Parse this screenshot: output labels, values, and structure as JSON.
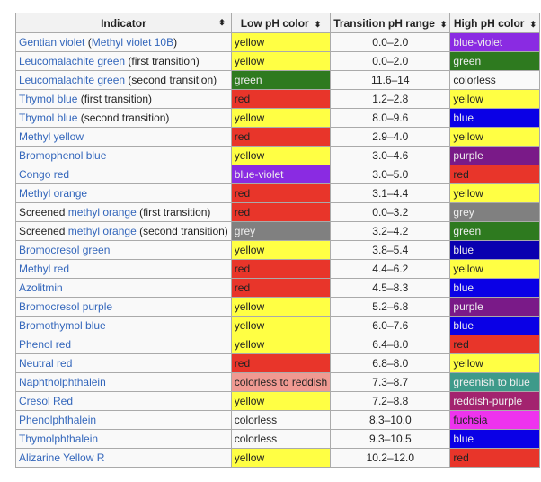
{
  "headers": [
    "Indicator",
    "Low pH color",
    "Transition pH range",
    "High pH color"
  ],
  "sort_icon": "sort-arrows-icon",
  "colors": {
    "yellow": "#ffff44",
    "red": "#e8352a",
    "green": "#2e7a1f",
    "grey": "#808080",
    "blue-violet": "#8a2be2",
    "blue": "#0a00e6",
    "blue-dark": "#0a00b0",
    "purple": "#7a1a88",
    "greenish to blue": "#3e9a8a",
    "reddish-purple": "#a3236f",
    "fuchsia": "#ee33ee",
    "colorless to reddish": "#f09a92",
    "colorless": ""
  },
  "rows": [
    {
      "indicator": [
        [
          "Gentian violet",
          1
        ],
        [
          " (",
          0
        ],
        [
          "Methyl violet 10B",
          1
        ],
        [
          ")",
          0
        ]
      ],
      "low": "yellow",
      "range": "0.0–2.0",
      "high": "blue-violet"
    },
    {
      "indicator": [
        [
          "Leucomalachite green",
          1
        ],
        [
          " (first transition)",
          0
        ]
      ],
      "low": "yellow",
      "range": "0.0–2.0",
      "high": "green"
    },
    {
      "indicator": [
        [
          "Leucomalachite green",
          1
        ],
        [
          " (second transition)",
          0
        ]
      ],
      "low": "green",
      "range": "11.6–14",
      "high": "colorless"
    },
    {
      "indicator": [
        [
          "Thymol blue",
          1
        ],
        [
          " (first transition)",
          0
        ]
      ],
      "low": "red",
      "range": "1.2–2.8",
      "high": "yellow"
    },
    {
      "indicator": [
        [
          "Thymol blue",
          1
        ],
        [
          " (second transition)",
          0
        ]
      ],
      "low": "yellow",
      "range": "8.0–9.6",
      "high": "blue"
    },
    {
      "indicator": [
        [
          "Methyl yellow",
          1
        ]
      ],
      "low": "red",
      "range": "2.9–4.0",
      "high": "yellow"
    },
    {
      "indicator": [
        [
          "Bromophenol blue",
          1
        ]
      ],
      "low": "yellow",
      "range": "3.0–4.6",
      "high": "purple"
    },
    {
      "indicator": [
        [
          "Congo red",
          1
        ]
      ],
      "low": "blue-violet",
      "range": "3.0–5.0",
      "high": "red"
    },
    {
      "indicator": [
        [
          "Methyl orange",
          1
        ]
      ],
      "low": "red",
      "range": "3.1–4.4",
      "high": "yellow"
    },
    {
      "indicator": [
        [
          "Screened ",
          0
        ],
        [
          "methyl orange",
          1
        ],
        [
          " (first transition)",
          0
        ]
      ],
      "low": "red",
      "range": "0.0–3.2",
      "high": "grey"
    },
    {
      "indicator": [
        [
          "Screened ",
          0
        ],
        [
          "methyl orange",
          1
        ],
        [
          " (second transition)",
          0
        ]
      ],
      "low": "grey",
      "range": "3.2–4.2",
      "high": "green"
    },
    {
      "indicator": [
        [
          "Bromocresol green",
          1
        ]
      ],
      "low": "yellow",
      "range": "3.8–5.4",
      "high": "blue",
      "highShade": "blue-dark"
    },
    {
      "indicator": [
        [
          "Methyl red",
          1
        ]
      ],
      "low": "red",
      "range": "4.4–6.2",
      "high": "yellow"
    },
    {
      "indicator": [
        [
          "Azolitmin",
          1
        ]
      ],
      "low": "red",
      "range": "4.5–8.3",
      "high": "blue"
    },
    {
      "indicator": [
        [
          "Bromocresol purple",
          1
        ]
      ],
      "low": "yellow",
      "range": "5.2–6.8",
      "high": "purple"
    },
    {
      "indicator": [
        [
          "Bromothymol blue",
          1
        ]
      ],
      "low": "yellow",
      "range": "6.0–7.6",
      "high": "blue"
    },
    {
      "indicator": [
        [
          "Phenol red",
          1
        ]
      ],
      "low": "yellow",
      "range": "6.4–8.0",
      "high": "red"
    },
    {
      "indicator": [
        [
          "Neutral red",
          1
        ]
      ],
      "low": "red",
      "range": "6.8–8.0",
      "high": "yellow"
    },
    {
      "indicator": [
        [
          "Naphtholphthalein",
          1
        ]
      ],
      "low": "colorless to reddish",
      "range": "7.3–8.7",
      "high": "greenish to blue"
    },
    {
      "indicator": [
        [
          "Cresol Red",
          1
        ]
      ],
      "low": "yellow",
      "range": "7.2–8.8",
      "high": "reddish-purple"
    },
    {
      "indicator": [
        [
          "Phenolphthalein",
          1
        ]
      ],
      "low": "colorless",
      "range": "8.3–10.0",
      "high": "fuchsia"
    },
    {
      "indicator": [
        [
          "Thymolphthalein",
          1
        ]
      ],
      "low": "colorless",
      "range": "9.3–10.5",
      "high": "blue"
    },
    {
      "indicator": [
        [
          "Alizarine Yellow R",
          1
        ]
      ],
      "low": "yellow",
      "range": "10.2–12.0",
      "high": "red"
    }
  ]
}
